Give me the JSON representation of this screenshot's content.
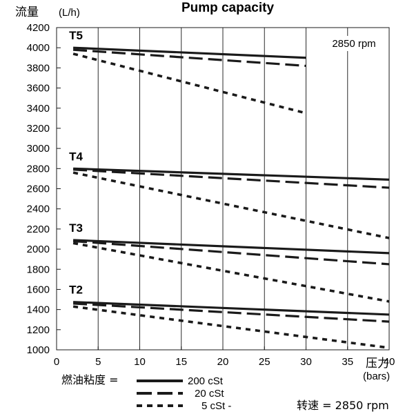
{
  "chart_data": {
    "type": "line",
    "title": "Pump capacity",
    "ylabel": "流量",
    "ylabel_unit": "(L/h)",
    "xlabel": "压力",
    "xlabel_unit": "(bars)",
    "xlim": [
      0,
      40
    ],
    "ylim": [
      1000,
      4200
    ],
    "x_ticks": [
      0,
      5,
      10,
      15,
      20,
      25,
      30,
      35,
      40
    ],
    "y_ticks": [
      1000,
      1200,
      1400,
      1600,
      1800,
      2000,
      2200,
      2400,
      2600,
      2800,
      3000,
      3200,
      3400,
      3600,
      3800,
      4000,
      4200
    ],
    "grid": "vertical",
    "speed_annotation": "2850 rpm",
    "groups": [
      {
        "label": "T5",
        "series": [
          {
            "viscosity": "200 cSt",
            "x": [
              2,
              30
            ],
            "y": [
              4000,
              3900
            ]
          },
          {
            "viscosity": "20 cSt",
            "x": [
              2,
              30
            ],
            "y": [
              3980,
              3820
            ]
          },
          {
            "viscosity": "5 cSt",
            "x": [
              2,
              30
            ],
            "y": [
              3940,
              3350
            ]
          }
        ]
      },
      {
        "label": "T4",
        "series": [
          {
            "viscosity": "200 cSt",
            "x": [
              2,
              40
            ],
            "y": [
              2800,
              2690
            ]
          },
          {
            "viscosity": "20 cSt",
            "x": [
              2,
              40
            ],
            "y": [
              2790,
              2610
            ]
          },
          {
            "viscosity": "5 cSt",
            "x": [
              2,
              40
            ],
            "y": [
              2760,
              2110
            ]
          }
        ]
      },
      {
        "label": "T3",
        "series": [
          {
            "viscosity": "200 cSt",
            "x": [
              2,
              40
            ],
            "y": [
              2090,
              1960
            ]
          },
          {
            "viscosity": "20 cSt",
            "x": [
              2,
              40
            ],
            "y": [
              2080,
              1850
            ]
          },
          {
            "viscosity": "5 cSt",
            "x": [
              2,
              40
            ],
            "y": [
              2060,
              1480
            ]
          }
        ]
      },
      {
        "label": "T2",
        "series": [
          {
            "viscosity": "200 cSt",
            "x": [
              2,
              40
            ],
            "y": [
              1475,
              1350
            ]
          },
          {
            "viscosity": "20 cSt",
            "x": [
              2,
              40
            ],
            "y": [
              1460,
              1280
            ]
          },
          {
            "viscosity": "5 cSt",
            "x": [
              2,
              40
            ],
            "y": [
              1430,
              1020
            ]
          }
        ]
      }
    ],
    "legend": {
      "title": "燃油粘度 =",
      "entries": [
        {
          "label": "200 cSt",
          "style": "solid"
        },
        {
          "label": "20 cSt",
          "style": "long-dash"
        },
        {
          "label": "5 cSt  -",
          "style": "short-dash"
        }
      ]
    },
    "footer_label": "转速 = 2850 rpm"
  }
}
